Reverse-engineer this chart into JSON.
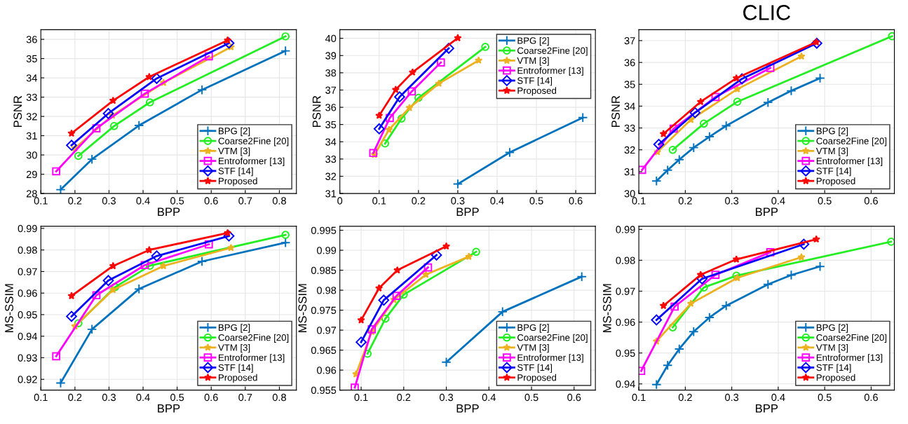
{
  "chart_data": [
    {
      "type": "line",
      "ylabel": "PSNR",
      "xlabel": "BPP",
      "xlim": [
        0.1,
        0.85
      ],
      "xticks": [
        0.1,
        0.2,
        0.3,
        0.4,
        0.5,
        0.6,
        0.7,
        0.8
      ],
      "ylim": [
        28,
        36.5
      ],
      "yticks": [
        28,
        29,
        30,
        31,
        32,
        33,
        34,
        35,
        36
      ],
      "grid": true,
      "legend": "bottom right",
      "series": [
        {
          "name": "BPG [2]",
          "color": "#0072bd",
          "marker": "cross",
          "x": [
            0.158,
            0.25,
            0.388,
            0.573,
            0.818
          ],
          "values": [
            28.2,
            29.78,
            31.53,
            33.38,
            35.4
          ]
        },
        {
          "name": "Coarse2Fine [20]",
          "color": "#22ee22",
          "marker": "circle",
          "x": [
            0.21,
            0.315,
            0.42,
            0.818
          ],
          "values": [
            29.95,
            31.5,
            32.73,
            36.15
          ]
        },
        {
          "name": "VTM [3]",
          "color": "#edb120",
          "marker": "star",
          "x": [
            0.2,
            0.31,
            0.46,
            0.658
          ],
          "values": [
            30.35,
            32.05,
            33.75,
            35.6
          ]
        },
        {
          "name": "Entroformer [13]",
          "color": "#ff00ff",
          "marker": "square",
          "x": [
            0.145,
            0.263,
            0.405,
            0.593
          ],
          "values": [
            29.15,
            31.38,
            33.18,
            35.12
          ]
        },
        {
          "name": "STF [14]",
          "color": "#0000ff",
          "marker": "diamond",
          "x": [
            0.19,
            0.298,
            0.44,
            0.652
          ],
          "values": [
            30.5,
            32.15,
            33.97,
            35.8
          ]
        },
        {
          "name": "Proposed",
          "color": "#ff0000",
          "marker": "star",
          "x": [
            0.19,
            0.312,
            0.418,
            0.648
          ],
          "values": [
            31.12,
            32.82,
            34.05,
            35.95
          ]
        }
      ]
    },
    {
      "type": "line",
      "ylabel": "PSNR",
      "xlabel": "BPP",
      "xlim": [
        0,
        0.65
      ],
      "xticks": [
        0,
        0.1,
        0.2,
        0.3,
        0.4,
        0.5,
        0.6
      ],
      "ylim": [
        31,
        40.5
      ],
      "yticks": [
        31,
        32,
        33,
        34,
        35,
        36,
        37,
        38,
        39,
        40
      ],
      "grid": true,
      "legend": "top right",
      "series": [
        {
          "name": "BPG [2]",
          "color": "#0072bd",
          "marker": "cross",
          "x": [
            0.3,
            0.432,
            0.618
          ],
          "values": [
            31.55,
            33.38,
            35.4
          ]
        },
        {
          "name": "Coarse2Fine [20]",
          "color": "#22ee22",
          "marker": "circle",
          "x": [
            0.115,
            0.157,
            0.2,
            0.37
          ],
          "values": [
            33.9,
            35.35,
            36.55,
            39.5
          ]
        },
        {
          "name": "VTM [3]",
          "color": "#edb120",
          "marker": "star",
          "x": [
            0.088,
            0.125,
            0.177,
            0.252,
            0.353
          ],
          "values": [
            33.25,
            34.7,
            35.97,
            37.38,
            38.72
          ]
        },
        {
          "name": "Entroformer [13]",
          "color": "#ff00ff",
          "marker": "square",
          "x": [
            0.085,
            0.127,
            0.183,
            0.257
          ],
          "values": [
            33.35,
            35.38,
            36.92,
            38.6
          ]
        },
        {
          "name": "STF [14]",
          "color": "#0000ff",
          "marker": "diamond",
          "x": [
            0.1,
            0.152,
            0.277
          ],
          "values": [
            34.75,
            36.6,
            39.42
          ]
        },
        {
          "name": "Proposed",
          "color": "#ff0000",
          "marker": "star",
          "x": [
            0.1,
            0.142,
            0.185,
            0.3
          ],
          "values": [
            35.52,
            37.02,
            38.03,
            40.02
          ]
        }
      ]
    },
    {
      "type": "line",
      "title": "CLIC",
      "ylabel": "PSNR",
      "xlabel": "BPP",
      "xlim": [
        0.1,
        0.65
      ],
      "xticks": [
        0.1,
        0.2,
        0.3,
        0.4,
        0.5,
        0.6
      ],
      "ylim": [
        30,
        37.5
      ],
      "yticks": [
        30,
        31,
        32,
        33,
        34,
        35,
        36,
        37
      ],
      "grid": true,
      "legend": "bottom right",
      "series": [
        {
          "name": "BPG [2]",
          "color": "#0072bd",
          "marker": "cross",
          "x": [
            0.138,
            0.162,
            0.187,
            0.218,
            0.252,
            0.288,
            0.378,
            0.428,
            0.49
          ],
          "values": [
            30.57,
            31.07,
            31.55,
            32.1,
            32.6,
            33.1,
            34.17,
            34.7,
            35.28
          ]
        },
        {
          "name": "Coarse2Fine [20]",
          "color": "#22ee22",
          "marker": "circle",
          "x": [
            0.173,
            0.24,
            0.312,
            0.645
          ],
          "values": [
            32.0,
            33.2,
            34.2,
            37.2
          ]
        },
        {
          "name": "VTM [3]",
          "color": "#edb120",
          "marker": "star",
          "x": [
            0.14,
            0.212,
            0.312,
            0.45
          ],
          "values": [
            31.9,
            33.38,
            34.78,
            36.28
          ]
        },
        {
          "name": "Entroformer [13]",
          "color": "#ff00ff",
          "marker": "square",
          "x": [
            0.107,
            0.175,
            0.265,
            0.383
          ],
          "values": [
            31.08,
            32.97,
            34.42,
            35.75
          ]
        },
        {
          "name": "STF [14]",
          "color": "#0000ff",
          "marker": "diamond",
          "x": [
            0.143,
            0.221,
            0.322,
            0.483
          ],
          "values": [
            32.25,
            33.7,
            35.25,
            36.88
          ]
        },
        {
          "name": "Proposed",
          "color": "#ff0000",
          "marker": "star",
          "x": [
            0.153,
            0.233,
            0.31,
            0.482
          ],
          "values": [
            32.73,
            34.2,
            35.28,
            36.93
          ]
        }
      ]
    },
    {
      "type": "line",
      "ylabel": "MS-SSIM",
      "xlabel": "BPP",
      "xlim": [
        0.1,
        0.85
      ],
      "xticks": [
        0.1,
        0.2,
        0.3,
        0.4,
        0.5,
        0.6,
        0.7,
        0.8
      ],
      "ylim": [
        0.915,
        0.991
      ],
      "yticks": [
        0.92,
        0.93,
        0.94,
        0.95,
        0.96,
        0.97,
        0.98,
        0.99
      ],
      "grid": true,
      "legend": "bottom right",
      "series": [
        {
          "name": "BPG [2]",
          "color": "#0072bd",
          "marker": "cross",
          "x": [
            0.158,
            0.25,
            0.388,
            0.573,
            0.818
          ],
          "values": [
            0.9183,
            0.9432,
            0.9619,
            0.9747,
            0.9834
          ]
        },
        {
          "name": "Coarse2Fine [20]",
          "color": "#22ee22",
          "marker": "circle",
          "x": [
            0.21,
            0.318,
            0.42,
            0.818
          ],
          "values": [
            0.946,
            0.9628,
            0.9727,
            0.987
          ]
        },
        {
          "name": "VTM [3]",
          "color": "#edb120",
          "marker": "star",
          "x": [
            0.2,
            0.312,
            0.46,
            0.658
          ],
          "values": [
            0.9446,
            0.9615,
            0.9726,
            0.981
          ]
        },
        {
          "name": "Entroformer [13]",
          "color": "#ff00ff",
          "marker": "square",
          "x": [
            0.145,
            0.263,
            0.405,
            0.593
          ],
          "values": [
            0.9307,
            0.959,
            0.973,
            0.9826
          ]
        },
        {
          "name": "STF [14]",
          "color": "#0000ff",
          "marker": "diamond",
          "x": [
            0.19,
            0.298,
            0.44,
            0.652
          ],
          "values": [
            0.9492,
            0.9658,
            0.9772,
            0.9865
          ]
        },
        {
          "name": "Proposed",
          "color": "#ff0000",
          "marker": "star",
          "x": [
            0.19,
            0.312,
            0.418,
            0.648
          ],
          "values": [
            0.9587,
            0.9726,
            0.98,
            0.9879
          ]
        }
      ]
    },
    {
      "type": "line",
      "ylabel": "MS-SSIM",
      "xlabel": "BPP",
      "xlim": [
        0.05,
        0.65
      ],
      "xticks": [
        0.1,
        0.2,
        0.3,
        0.4,
        0.5,
        0.6
      ],
      "ylim": [
        0.955,
        0.996
      ],
      "yticks": [
        0.955,
        0.96,
        0.965,
        0.97,
        0.975,
        0.98,
        0.985,
        0.99,
        0.995
      ],
      "grid": true,
      "legend": "bottom right",
      "series": [
        {
          "name": "BPG [2]",
          "color": "#0072bd",
          "marker": "cross",
          "x": [
            0.3,
            0.432,
            0.618
          ],
          "values": [
            0.962,
            0.9746,
            0.9834
          ]
        },
        {
          "name": "Coarse2Fine [20]",
          "color": "#22ee22",
          "marker": "circle",
          "x": [
            0.115,
            0.157,
            0.2,
            0.37
          ],
          "values": [
            0.9641,
            0.9729,
            0.9789,
            0.9896
          ]
        },
        {
          "name": "VTM [3]",
          "color": "#edb120",
          "marker": "star",
          "x": [
            0.088,
            0.125,
            0.177,
            0.252,
            0.353
          ],
          "values": [
            0.959,
            0.9696,
            0.9776,
            0.9839,
            0.9884
          ]
        },
        {
          "name": "Entroformer [13]",
          "color": "#ff00ff",
          "marker": "square",
          "x": [
            0.085,
            0.125,
            0.183,
            0.257
          ],
          "values": [
            0.9556,
            0.9702,
            0.9786,
            0.9857
          ]
        },
        {
          "name": "STF [14]",
          "color": "#0000ff",
          "marker": "diamond",
          "x": [
            0.1,
            0.153,
            0.277
          ],
          "values": [
            0.967,
            0.9775,
            0.9888
          ]
        },
        {
          "name": "Proposed",
          "color": "#ff0000",
          "marker": "star",
          "x": [
            0.1,
            0.142,
            0.185,
            0.3
          ],
          "values": [
            0.9725,
            0.9805,
            0.985,
            0.991
          ]
        }
      ]
    },
    {
      "type": "line",
      "ylabel": "MS-SSIM",
      "xlabel": "BPP",
      "xlim": [
        0.1,
        0.65
      ],
      "xticks": [
        0.1,
        0.2,
        0.3,
        0.4,
        0.5,
        0.6
      ],
      "ylim": [
        0.938,
        0.991
      ],
      "yticks": [
        0.94,
        0.95,
        0.96,
        0.97,
        0.98,
        0.99
      ],
      "grid": true,
      "legend": "bottom right",
      "series": [
        {
          "name": "BPG [2]",
          "color": "#0072bd",
          "marker": "cross",
          "x": [
            0.138,
            0.162,
            0.187,
            0.218,
            0.252,
            0.288,
            0.378,
            0.428,
            0.49
          ],
          "values": [
            0.9398,
            0.946,
            0.9513,
            0.9569,
            0.9615,
            0.9653,
            0.9722,
            0.9752,
            0.978
          ]
        },
        {
          "name": "Coarse2Fine [20]",
          "color": "#22ee22",
          "marker": "circle",
          "x": [
            0.173,
            0.24,
            0.31,
            0.643
          ],
          "values": [
            0.9583,
            0.9712,
            0.975,
            0.986
          ]
        },
        {
          "name": "VTM [3]",
          "color": "#edb120",
          "marker": "star",
          "x": [
            0.138,
            0.212,
            0.312,
            0.45
          ],
          "values": [
            0.9538,
            0.966,
            0.9743,
            0.981
          ]
        },
        {
          "name": "Entroformer [13]",
          "color": "#ff00ff",
          "marker": "square",
          "x": [
            0.105,
            0.177,
            0.265,
            0.383
          ],
          "values": [
            0.9442,
            0.965,
            0.9753,
            0.9826
          ]
        },
        {
          "name": "STF [14]",
          "color": "#0000ff",
          "marker": "diamond",
          "x": [
            0.138,
            0.236,
            0.455
          ],
          "values": [
            0.9607,
            0.974,
            0.9852
          ]
        },
        {
          "name": "Proposed",
          "color": "#ff0000",
          "marker": "star",
          "x": [
            0.153,
            0.233,
            0.31,
            0.482
          ],
          "values": [
            0.9653,
            0.9753,
            0.9803,
            0.9868
          ]
        }
      ]
    }
  ]
}
